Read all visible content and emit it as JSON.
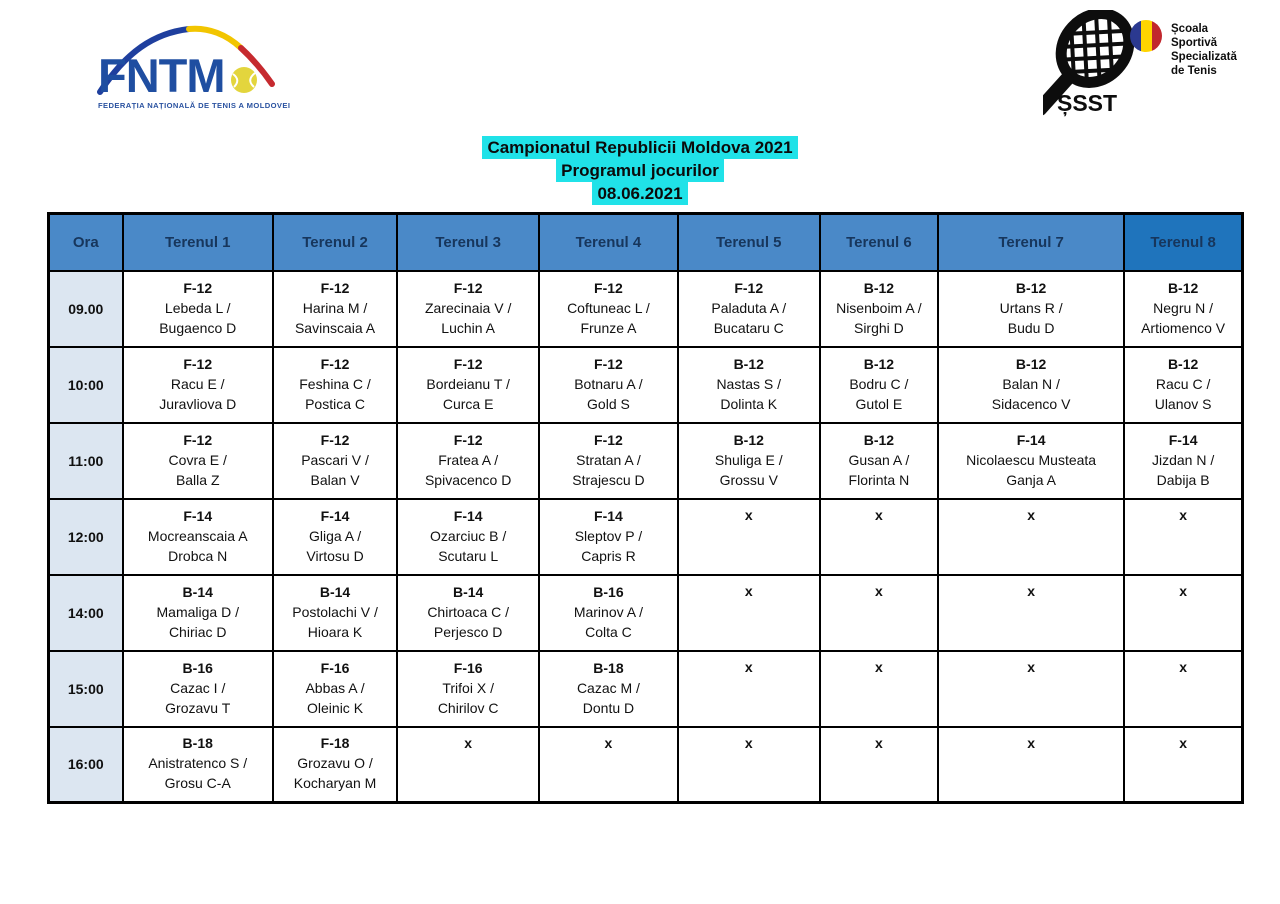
{
  "colors": {
    "header-blue": "#4a89c8",
    "header-blue-dark": "#1f74bc",
    "time-col": "#dce6f1",
    "highlight": "#20e2e8",
    "brand-blue": "#1f4ea1"
  },
  "logos": {
    "fntm": {
      "acronym": "FNTM",
      "tagline": "FEDERAȚIA NAȚIONALĂ DE TENIS A MOLDOVEI"
    },
    "ssst": {
      "acronym": "ȘSST",
      "school_line1": "Școala",
      "school_line2": "Sportivă",
      "school_line3": "Specializată",
      "school_line4": "de Tenis"
    }
  },
  "title": {
    "line1": "Campionatul Republicii Moldova 2021",
    "line2": "Programul jocurilor",
    "date": "08.06.2021"
  },
  "schedule": {
    "columns": [
      "Ora",
      "Terenul 1",
      "Terenul 2",
      "Terenul 3",
      "Terenul 4",
      "Terenul 5",
      "Terenul 6",
      "Terenul 7",
      "Terenul 8"
    ],
    "empty_marker": "x",
    "rows": [
      {
        "time": "09.00",
        "cells": [
          [
            "F-12",
            "Lebeda L /",
            "Bugaenco D"
          ],
          [
            "F-12",
            "Harina M /",
            "Savinscaia A"
          ],
          [
            "F-12",
            "Zarecinaia V /",
            "Luchin A"
          ],
          [
            "F-12",
            "Coftuneac L /",
            "Frunze A"
          ],
          [
            "F-12",
            "Paladuta A /",
            "Bucataru C"
          ],
          [
            "B-12",
            "Nisenboim A /",
            "Sirghi D"
          ],
          [
            "B-12",
            "Urtans R /",
            "Budu D"
          ],
          [
            "B-12",
            "Negru N /",
            "Artiomenco V"
          ]
        ]
      },
      {
        "time": "10:00",
        "cells": [
          [
            "F-12",
            "Racu E /",
            "Juravliova D"
          ],
          [
            "F-12",
            "Feshina C /",
            "Postica C"
          ],
          [
            "F-12",
            "Bordeianu T /",
            "Curca E"
          ],
          [
            "F-12",
            "Botnaru A /",
            "Gold S"
          ],
          [
            "B-12",
            "Nastas S /",
            "Dolinta K"
          ],
          [
            "B-12",
            "Bodru C /",
            "Gutol E"
          ],
          [
            "B-12",
            "Balan N /",
            "Sidacenco V"
          ],
          [
            "B-12",
            "Racu C /",
            "Ulanov S"
          ]
        ]
      },
      {
        "time": "11:00",
        "cells": [
          [
            "F-12",
            "Covra E /",
            "Balla Z"
          ],
          [
            "F-12",
            "Pascari V /",
            "Balan V"
          ],
          [
            "F-12",
            "Fratea A /",
            "Spivacenco D"
          ],
          [
            "F-12",
            "Stratan A /",
            "Strajescu D"
          ],
          [
            "B-12",
            "Shuliga E /",
            "Grossu V"
          ],
          [
            "B-12",
            "Gusan A /",
            "Florinta N"
          ],
          [
            "F-14",
            "Nicolaescu Musteata",
            "Ganja A"
          ],
          [
            "F-14",
            "Jizdan N /",
            "Dabija B"
          ]
        ]
      },
      {
        "time": "12:00",
        "cells": [
          [
            "F-14",
            "Mocreanscaia A",
            "Drobca N"
          ],
          [
            "F-14",
            "Gliga A /",
            "Virtosu D"
          ],
          [
            "F-14",
            "Ozarciuc B /",
            "Scutaru L"
          ],
          [
            "F-14",
            "Sleptov P /",
            "Capris R"
          ],
          "x",
          "x",
          "x",
          "x"
        ]
      },
      {
        "time": "14:00",
        "cells": [
          [
            "B-14",
            "Mamaliga D /",
            "Chiriac  D"
          ],
          [
            "B-14",
            "Postolachi V /",
            "Hioara K"
          ],
          [
            "B-14",
            "Chirtoaca C /",
            "Perjesco D"
          ],
          [
            "B-16",
            "Marinov A /",
            "Colta C"
          ],
          "x",
          "x",
          "x",
          "x"
        ]
      },
      {
        "time": "15:00",
        "cells": [
          [
            "B-16",
            "Cazac I /",
            "Grozavu T"
          ],
          [
            "F-16",
            "Abbas A /",
            "Oleinic K"
          ],
          [
            "F-16",
            "Trifoi X /",
            "Chirilov C"
          ],
          [
            "B-18",
            "Cazac M /",
            "Dontu D"
          ],
          "x",
          "x",
          "x",
          "x"
        ]
      },
      {
        "time": "16:00",
        "cells": [
          [
            "B-18",
            "Anistratenco S /",
            "Grosu C-A"
          ],
          [
            "F-18",
            "Grozavu O /",
            "Kocharyan M"
          ],
          "x",
          "x",
          "x",
          "x",
          "x",
          "x"
        ]
      }
    ]
  }
}
